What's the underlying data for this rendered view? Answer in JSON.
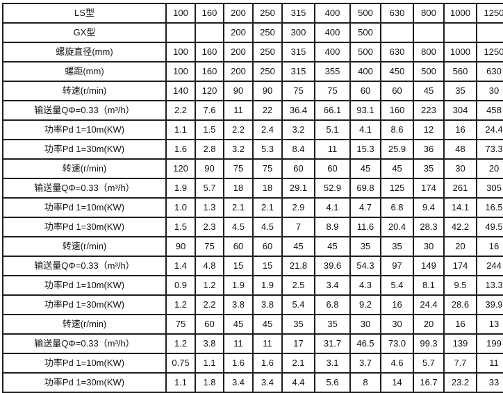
{
  "table": {
    "name": "screw-conveyor-spec-table",
    "rows": [
      {
        "label": "LS型",
        "values": [
          "100",
          "160",
          "200",
          "250",
          "315",
          "400",
          "500",
          "630",
          "800",
          "1000",
          "1250"
        ]
      },
      {
        "label": "GX型",
        "values": [
          "",
          "",
          "200",
          "250",
          "300",
          "400",
          "500",
          "",
          "",
          "",
          ""
        ]
      },
      {
        "label": "螺旋直径(mm)",
        "values": [
          "100",
          "160",
          "200",
          "250",
          "315",
          "400",
          "500",
          "630",
          "800",
          "1000",
          "1250"
        ]
      },
      {
        "label": "螺距(mm)",
        "values": [
          "100",
          "160",
          "200",
          "250",
          "315",
          "355",
          "400",
          "450",
          "500",
          "560",
          "630"
        ]
      },
      {
        "label": "转速(r/min)",
        "values": [
          "140",
          "120",
          "90",
          "90",
          "75",
          "75",
          "60",
          "60",
          "45",
          "35",
          "30"
        ]
      },
      {
        "label": "输送量QΦ=0.33（m³/h）",
        "values": [
          "2.2",
          "7.6",
          "11",
          "22",
          "36.4",
          "66.1",
          "93.1",
          "160",
          "223",
          "304",
          "458"
        ]
      },
      {
        "label": "功率Pd 1=10m(KW)",
        "values": [
          "1.1",
          "1.5",
          "2.2",
          "2.4",
          "3.2",
          "5.1",
          "4.1",
          "8.6",
          "12",
          "16",
          "24.4"
        ]
      },
      {
        "label": "功率Pd 1=30m(KW)",
        "values": [
          "1.6",
          "2.8",
          "3.2",
          "5.3",
          "8.4",
          "11",
          "15.3",
          "25.9",
          "36",
          "48",
          "73.3"
        ]
      },
      {
        "label": "转速(r/min)",
        "values": [
          "120",
          "90",
          "75",
          "75",
          "60",
          "60",
          "45",
          "45",
          "35",
          "30",
          "20"
        ]
      },
      {
        "label": "输送量QΦ=0.33（m³/h）",
        "values": [
          "1.9",
          "5.7",
          "18",
          "18",
          "29.1",
          "52.9",
          "69.8",
          "125",
          "174",
          "261",
          "305"
        ]
      },
      {
        "label": "功率Pd 1=10m(KW)",
        "values": [
          "1.0",
          "1.3",
          "2.1",
          "2.1",
          "2.9",
          "4.1",
          "4.7",
          "6.8",
          "9.4",
          "14.1",
          "16.5"
        ]
      },
      {
        "label": "功率Pd 1=30m(KW)",
        "values": [
          "1.5",
          "2.3",
          "4.5",
          "4.5",
          "7",
          "8.9",
          "11.6",
          "20.4",
          "28.3",
          "42.2",
          "49.5"
        ]
      },
      {
        "label": "转速(r/min)",
        "values": [
          "90",
          "75",
          "60",
          "60",
          "45",
          "45",
          "35",
          "35",
          "30",
          "20",
          "16"
        ]
      },
      {
        "label": "输送量QΦ=0.33（m³/h）",
        "values": [
          "1.4",
          "4.8",
          "15",
          "15",
          "21.8",
          "39.6",
          "54.3",
          "97",
          "149",
          "174",
          "244"
        ]
      },
      {
        "label": "功率Pd 1=10m(KW)",
        "values": [
          "0.9",
          "1.2",
          "1.9",
          "1.9",
          "2.5",
          "3.4",
          "4.3",
          "5.4",
          "8.1",
          "9.5",
          "13.3"
        ]
      },
      {
        "label": "功率Pd 1=30m(KW)",
        "values": [
          "1.2",
          "2.2",
          "3.8",
          "3.8",
          "5.4",
          "6.8",
          "9.2",
          "16",
          "24.4",
          "28.6",
          "39.9"
        ]
      },
      {
        "label": "转速(r/min)",
        "values": [
          "75",
          "60",
          "45",
          "45",
          "35",
          "35",
          "30",
          "30",
          "20",
          "16",
          "13"
        ]
      },
      {
        "label": "输送量QΦ=0.33（m³/h）",
        "values": [
          "1.2",
          "3.8",
          "11",
          "11",
          "17",
          "31.7",
          "46.5",
          "73.0",
          "99.3",
          "139",
          "199"
        ]
      },
      {
        "label": "功率Pd 1=10m(KW)",
        "values": [
          "0.75",
          "1.1",
          "1.6",
          "1.6",
          "2.1",
          "3.1",
          "3.7",
          "4.6",
          "5.7",
          "7.7",
          "11"
        ]
      },
      {
        "label": "功率Pd 1=30m(KW)",
        "values": [
          "1.1",
          "1.8",
          "3.4",
          "3.4",
          "4.4",
          "5.6",
          "8",
          "14",
          "16.7",
          "23.2",
          "33"
        ]
      }
    ]
  },
  "colors": {
    "border": "#1e1e1e",
    "text": "#121212",
    "background": "#ffffff"
  }
}
